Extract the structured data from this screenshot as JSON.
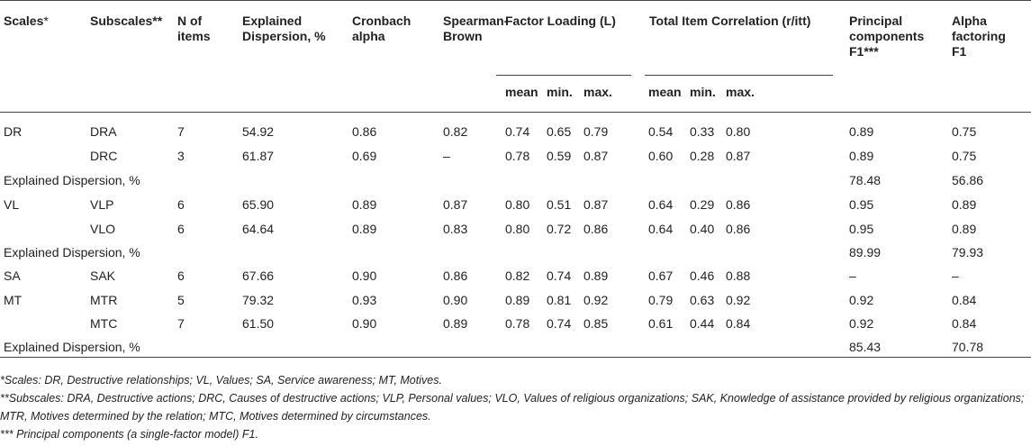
{
  "table": {
    "headers": {
      "scales": "Scales",
      "scales_mark": "*",
      "subscales": "Subscales**",
      "n_items": "N of items",
      "explained_dispersion": "Explained Dispersion, %",
      "cronbach": "Cronbach alpha",
      "spearman": "Spearman-Brown",
      "factor_loading": "Factor Loading (L)",
      "item_correlation": "Total Item Correlation (r/itt)",
      "principal": "Principal components F1***",
      "alpha_factoring": "Alpha factoring F1",
      "fl_mean": "mean",
      "fl_min": "min.",
      "fl_max": "max.",
      "ic_mean": "mean",
      "ic_min": "min.",
      "ic_max": "max."
    },
    "rows": [
      {
        "scale": "DR",
        "sub": "DRA",
        "n": "7",
        "ed": "54.92",
        "ca": "0.86",
        "sb": "0.82",
        "flmean": "0.74",
        "flmin": "0.65",
        "flmax": "0.79",
        "icmean": "0.54",
        "icmin": "0.33",
        "icmax": "0.80",
        "pc": "0.89",
        "af": "0.75"
      },
      {
        "scale": "",
        "sub": "DRC",
        "n": "3",
        "ed": "61.87",
        "ca": "0.69",
        "sb": "–",
        "flmean": "0.78",
        "flmin": "0.59",
        "flmax": "0.87",
        "icmean": "0.60",
        "icmin": "0.28",
        "icmax": "0.87",
        "pc": "0.89",
        "af": "0.75"
      },
      {
        "label": "Explained Dispersion, %",
        "pc": "78.48",
        "af": "56.86"
      },
      {
        "scale": "VL",
        "sub": "VLP",
        "n": "6",
        "ed": "65.90",
        "ca": "0.89",
        "sb": "0.87",
        "flmean": "0.80",
        "flmin": "0.51",
        "flmax": "0.87",
        "icmean": "0.64",
        "icmin": "0.29",
        "icmax": "0.86",
        "pc": "0.95",
        "af": "0.89"
      },
      {
        "scale": "",
        "sub": "VLO",
        "n": "6",
        "ed": "64.64",
        "ca": "0.89",
        "sb": "0.83",
        "flmean": "0.80",
        "flmin": "0.72",
        "flmax": "0.86",
        "icmean": "0.64",
        "icmin": "0.40",
        "icmax": "0.86",
        "pc": "0.95",
        "af": "0.89"
      },
      {
        "label": "Explained Dispersion, %",
        "pc": "89.99",
        "af": "79.93"
      },
      {
        "scale": "SA",
        "sub": "SAK",
        "n": "6",
        "ed": "67.66",
        "ca": "0.90",
        "sb": "0.86",
        "flmean": "0.82",
        "flmin": "0.74",
        "flmax": "0.89",
        "icmean": "0.67",
        "icmin": "0.46",
        "icmax": "0.88",
        "pc": "–",
        "af": "–"
      },
      {
        "scale": "MT",
        "sub": "MTR",
        "n": "5",
        "ed": "79.32",
        "ca": "0.93",
        "sb": "0.90",
        "flmean": "0.89",
        "flmin": "0.81",
        "flmax": "0.92",
        "icmean": "0.79",
        "icmin": "0.63",
        "icmax": "0.92",
        "pc": "0.92",
        "af": "0.84"
      },
      {
        "scale": "",
        "sub": "MTC",
        "n": "7",
        "ed": "61.50",
        "ca": "0.90",
        "sb": "0.89",
        "flmean": "0.78",
        "flmin": "0.74",
        "flmax": "0.85",
        "icmean": "0.61",
        "icmin": "0.44",
        "icmax": "0.84",
        "pc": "0.92",
        "af": "0.84"
      },
      {
        "label": "Explained Dispersion, %",
        "pc": "85.43",
        "af": "70.78"
      }
    ]
  },
  "footnotes": [
    "*Scales: DR, Destructive relationships; VL, Values; SA, Service awareness; MT, Motives.",
    "**Subscales: DRA, Destructive actions; DRC, Causes of destructive actions; VLP, Personal values; VLO, Values of religious organizations; SAK, Knowledge of assistance provided by religious organizations; MTR, Motives determined by the relation; MTC, Motives determined by circumstances.",
    "*** Principal components (a single-factor model) F1."
  ]
}
